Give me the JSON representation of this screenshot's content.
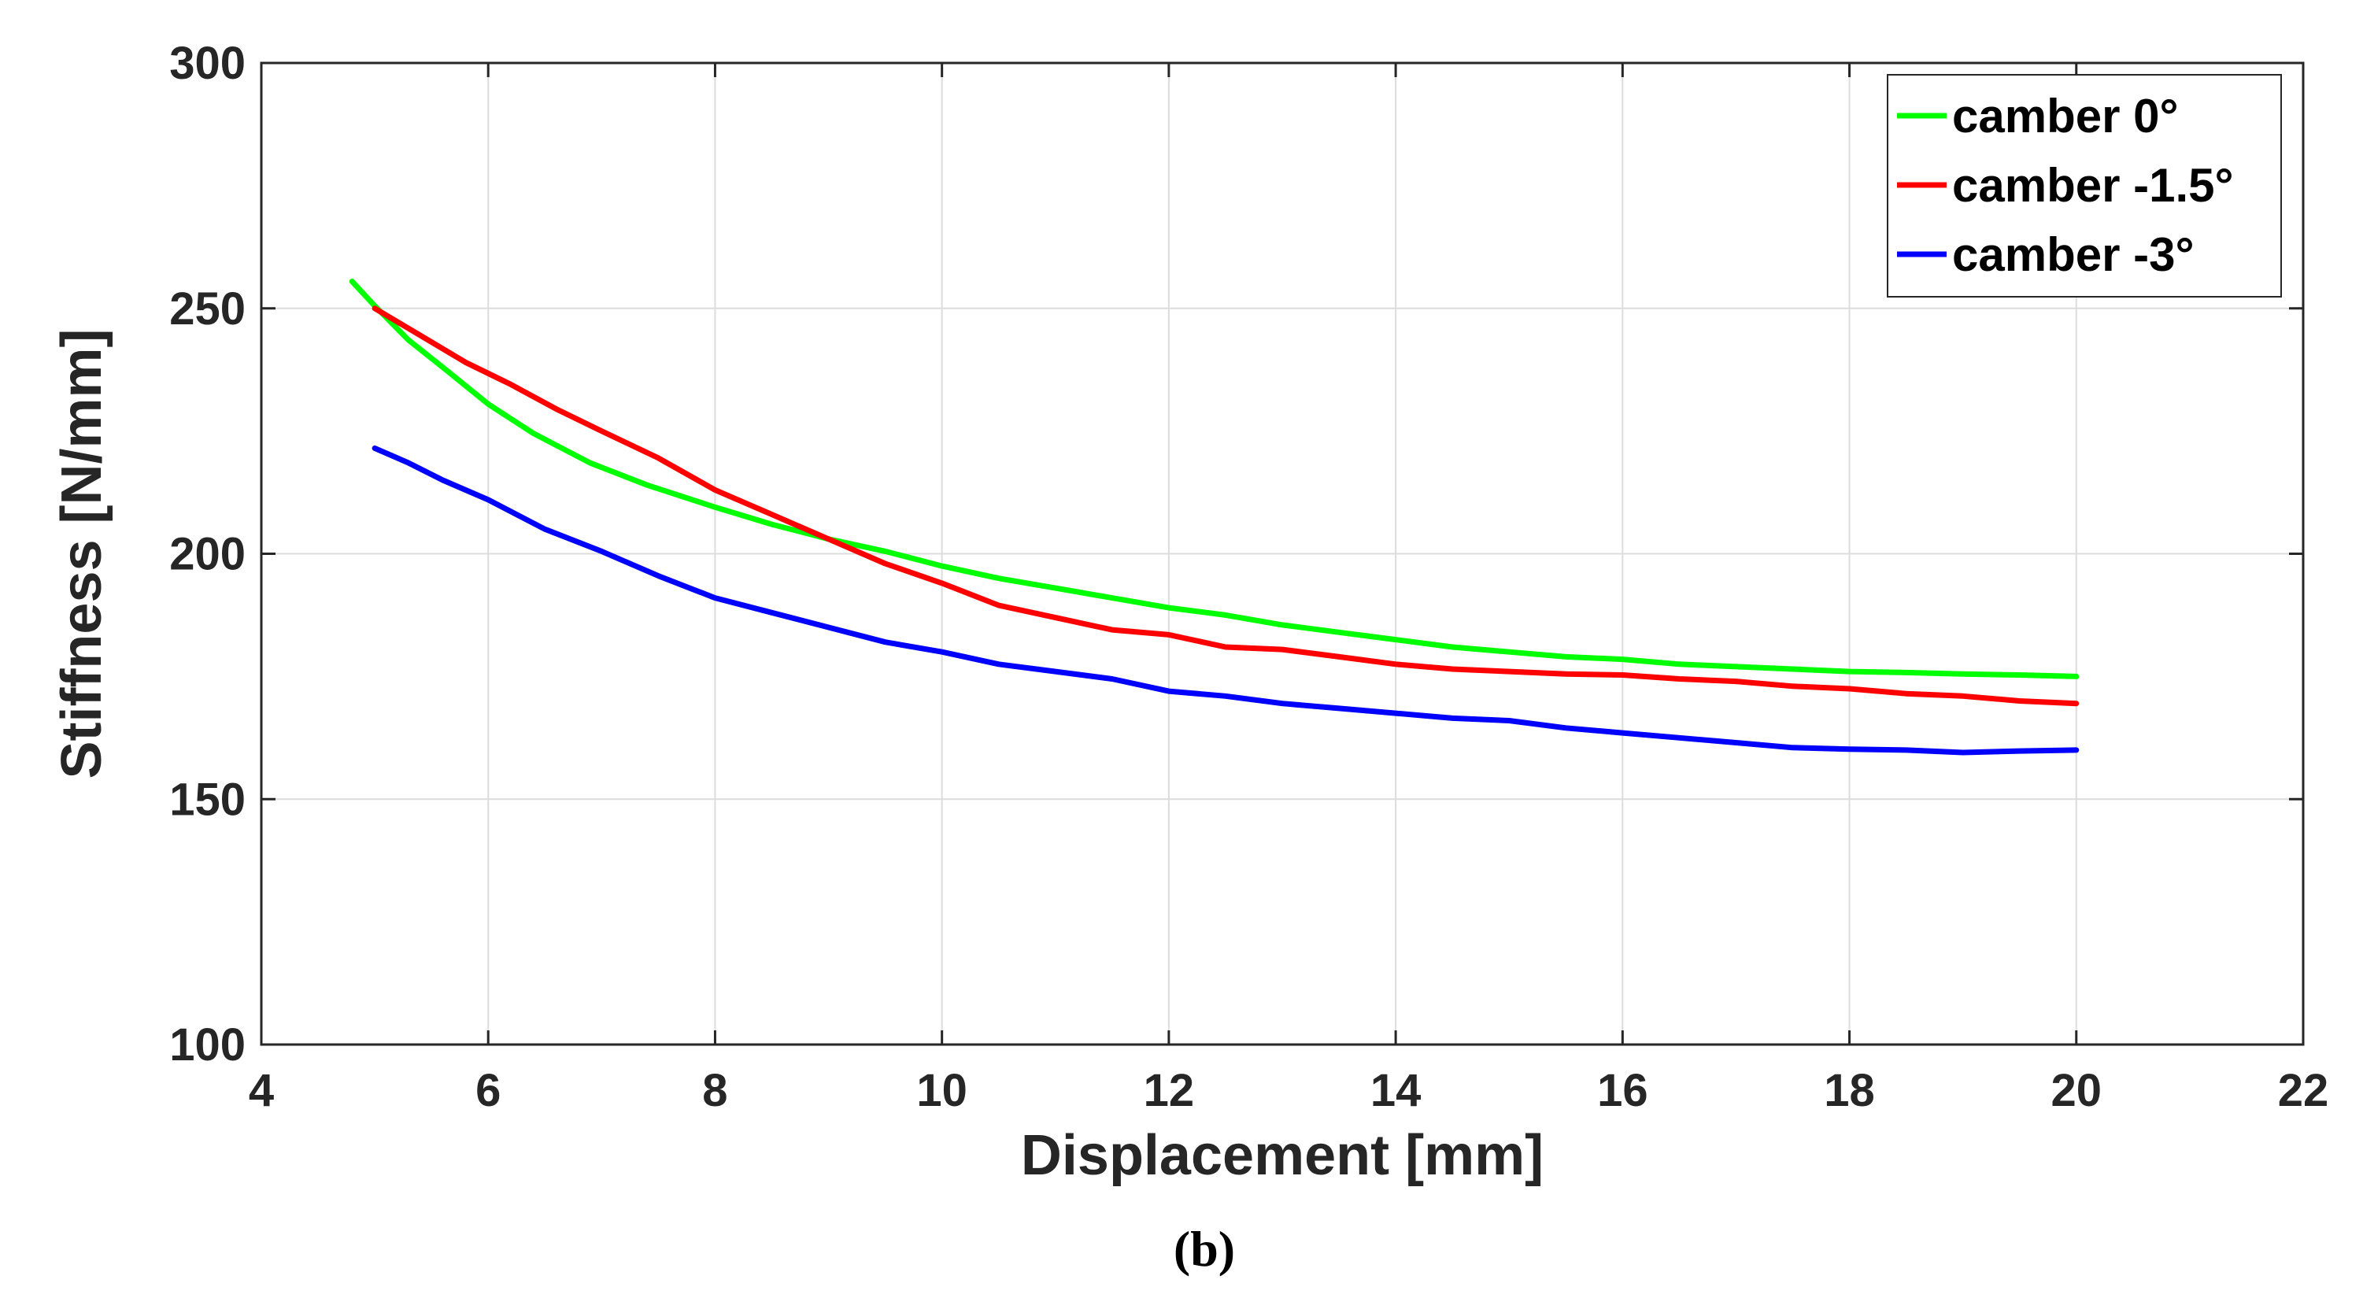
{
  "chart_data": {
    "type": "line",
    "title": "",
    "xlabel": "Displacement [mm]",
    "ylabel": "Stiffness [N/mm]",
    "xlim": [
      4,
      22
    ],
    "ylim": [
      100,
      300
    ],
    "xticks": [
      4,
      6,
      8,
      10,
      12,
      14,
      16,
      18,
      20,
      22
    ],
    "yticks": [
      100,
      150,
      200,
      250,
      300
    ],
    "grid": true,
    "legend_position": "top-right",
    "caption": "(b)",
    "series": [
      {
        "name": "camber 0°",
        "color": "#00ff00",
        "x": [
          4.8,
          5.0,
          5.3,
          5.6,
          6.0,
          6.4,
          6.9,
          7.4,
          8.0,
          8.5,
          9.0,
          9.5,
          10.0,
          10.5,
          11.0,
          11.5,
          12.0,
          12.5,
          13.0,
          13.5,
          14.0,
          14.5,
          15.0,
          15.5,
          16.0,
          16.5,
          17.0,
          17.5,
          18.0,
          18.5,
          19.0,
          19.5,
          20.0
        ],
        "y": [
          255.5,
          250.5,
          243.5,
          238.0,
          230.5,
          224.5,
          218.5,
          214.0,
          209.5,
          206.0,
          203.0,
          200.5,
          197.5,
          195.0,
          193.0,
          191.0,
          189.0,
          187.5,
          185.5,
          184.0,
          182.5,
          181.0,
          180.0,
          179.0,
          178.5,
          177.5,
          177.0,
          176.5,
          176.0,
          175.8,
          175.5,
          175.3,
          175.0
        ]
      },
      {
        "name": "camber -1.5°",
        "color": "#ff0000",
        "x": [
          5.0,
          5.4,
          5.8,
          6.2,
          6.6,
          7.0,
          7.5,
          8.0,
          8.5,
          9.0,
          9.5,
          10.0,
          10.5,
          11.0,
          11.5,
          12.0,
          12.5,
          13.0,
          13.5,
          14.0,
          14.5,
          15.0,
          15.5,
          16.0,
          16.5,
          17.0,
          17.5,
          18.0,
          18.5,
          19.0,
          19.5,
          20.0
        ],
        "y": [
          250.0,
          244.5,
          239.0,
          234.5,
          229.5,
          225.0,
          219.5,
          213.0,
          208.0,
          203.0,
          198.0,
          194.0,
          189.5,
          187.0,
          184.5,
          183.5,
          181.0,
          180.5,
          179.0,
          177.5,
          176.5,
          176.0,
          175.5,
          175.3,
          174.5,
          174.0,
          173.0,
          172.5,
          171.5,
          171.0,
          170.0,
          169.5
        ]
      },
      {
        "name": "camber -3°",
        "color": "#0000ff",
        "x": [
          5.0,
          5.3,
          5.6,
          6.0,
          6.5,
          7.0,
          7.5,
          8.0,
          8.5,
          9.0,
          9.5,
          10.0,
          10.5,
          11.0,
          11.5,
          12.0,
          12.5,
          13.0,
          13.5,
          14.0,
          14.5,
          15.0,
          15.5,
          16.0,
          16.5,
          17.0,
          17.5,
          18.0,
          18.5,
          19.0,
          19.5,
          20.0
        ],
        "y": [
          221.5,
          218.5,
          215.0,
          211.0,
          205.0,
          200.5,
          195.5,
          191.0,
          188.0,
          185.0,
          182.0,
          180.0,
          177.5,
          176.0,
          174.5,
          172.0,
          171.0,
          169.5,
          168.5,
          167.5,
          166.5,
          166.0,
          164.5,
          163.5,
          162.5,
          161.5,
          160.5,
          160.2,
          160.0,
          159.5,
          159.8,
          160.0
        ]
      }
    ]
  }
}
